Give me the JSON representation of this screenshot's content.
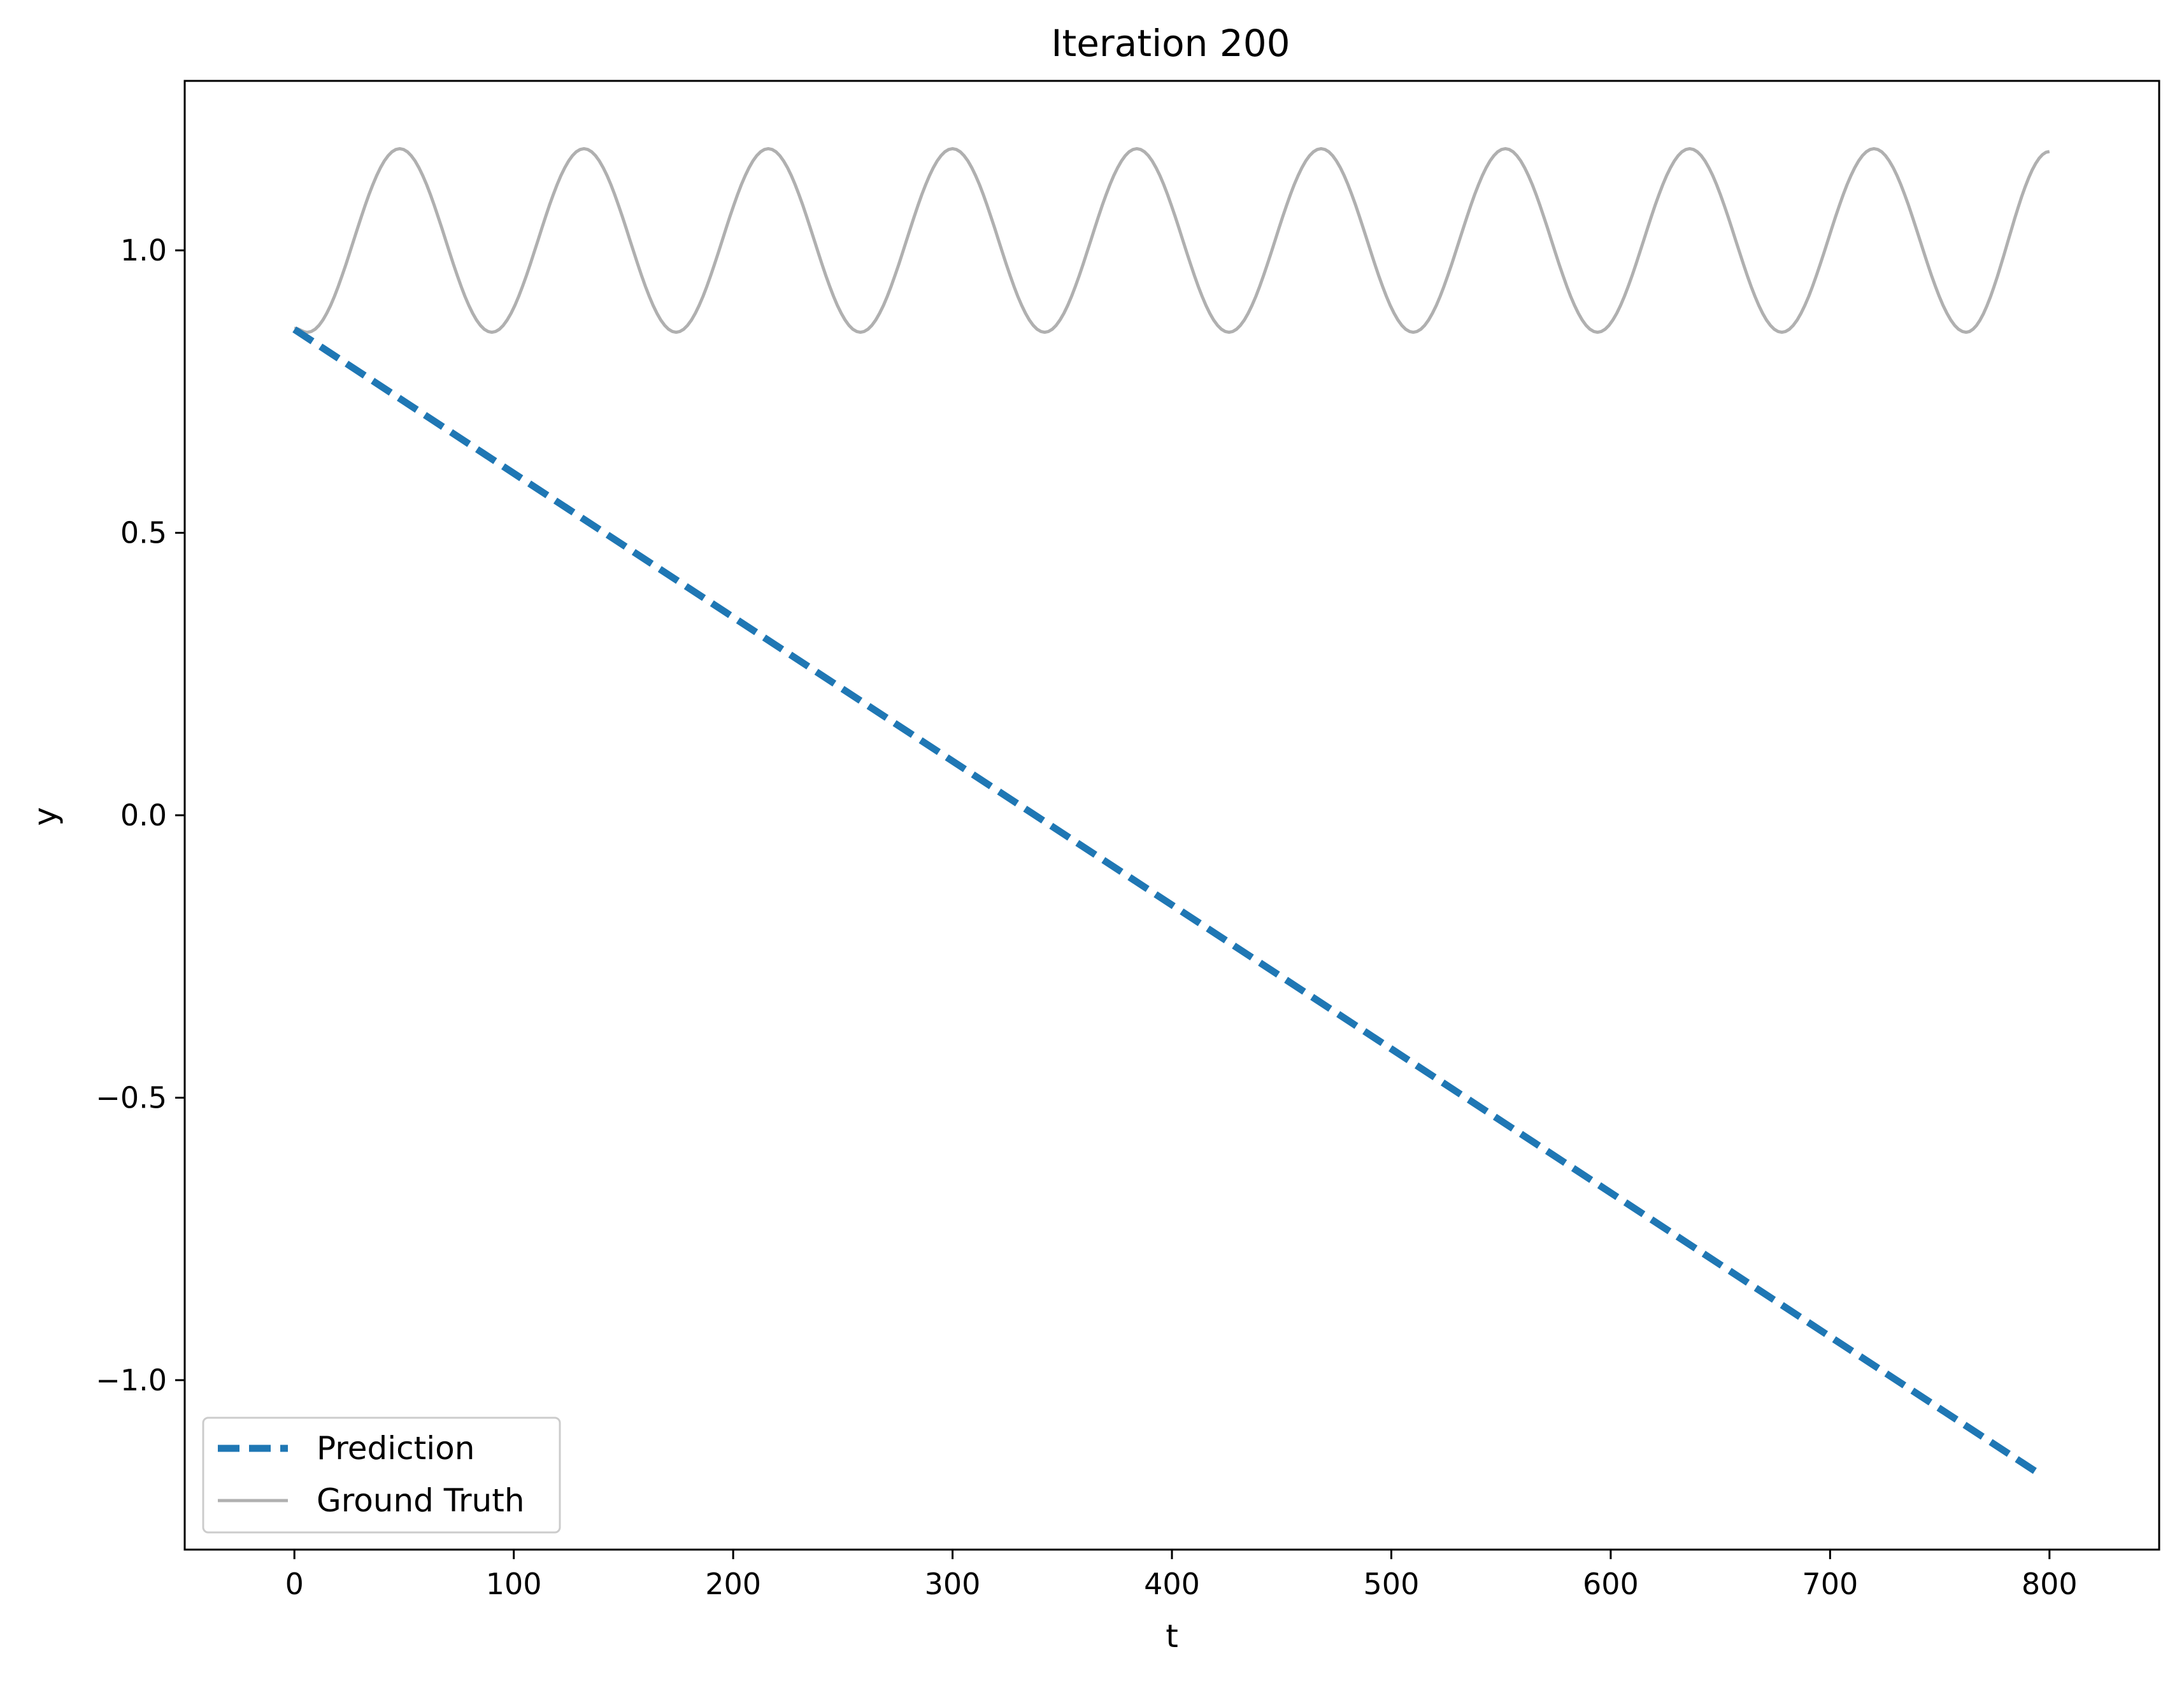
{
  "chart_data": {
    "type": "line",
    "title": "Iteration 200",
    "xlabel": "t",
    "ylabel": "y",
    "xlim": [
      -50,
      850
    ],
    "ylim": [
      -1.3,
      1.3
    ],
    "xticks": [
      0,
      100,
      200,
      300,
      400,
      500,
      600,
      700,
      800
    ],
    "xtick_labels": [
      "0",
      "100",
      "200",
      "300",
      "400",
      "500",
      "600",
      "700",
      "800"
    ],
    "yticks": [
      -1.0,
      -0.5,
      0.0,
      0.5,
      1.0
    ],
    "ytick_labels": [
      "−1.0",
      "−0.5",
      "0.0",
      "0.5",
      "1.0"
    ],
    "grid": false,
    "legend_position": "lower-left",
    "series": [
      {
        "name": "Prediction",
        "style": "dashed",
        "color": "#1f77b4",
        "x": [
          0,
          795
        ],
        "y": [
          0.86,
          -1.165
        ]
      },
      {
        "name": "Ground Truth",
        "style": "solid",
        "color": "#b0b0b0",
        "x": [
          0,
          6,
          48,
          90,
          132,
          174,
          216,
          258,
          300,
          342,
          384,
          426,
          468,
          510,
          552,
          594,
          636,
          678,
          720,
          762,
          800
        ],
        "y": [
          0.862,
          0.855,
          1.18,
          0.855,
          1.18,
          0.855,
          1.18,
          0.855,
          1.18,
          0.855,
          1.18,
          0.855,
          1.18,
          0.855,
          1.18,
          0.855,
          1.18,
          0.855,
          1.18,
          0.855,
          1.175
        ]
      }
    ]
  }
}
